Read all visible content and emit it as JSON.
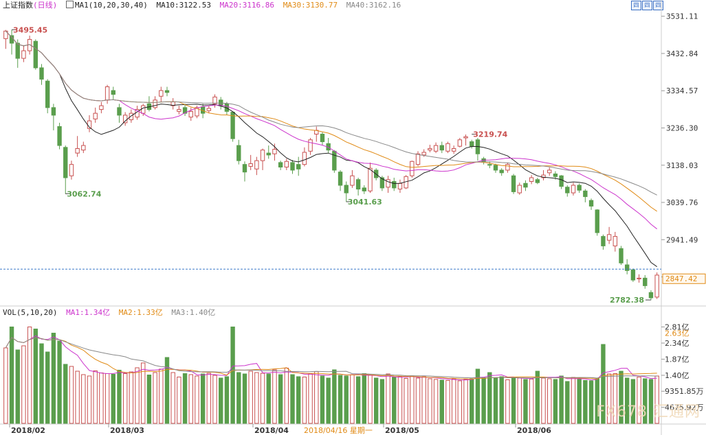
{
  "header": {
    "index_name": "上证指数",
    "period": "(日线)",
    "ma_label": "MA1(10,20,30,40)",
    "ma10": "MA10:3122.53",
    "ma20": "MA20:3116.86",
    "ma30": "MA30:3130.77",
    "ma40": "MA40:3162.16"
  },
  "vol_header": {
    "label": "VOL(5,10,20)",
    "ma1": "MA1:1.34亿",
    "ma2": "MA2:1.33亿",
    "ma3": "MA3:1.40亿"
  },
  "buttons": [
    "四",
    "四",
    "四"
  ],
  "colors": {
    "up": "#c8504f",
    "down": "#5a9e4d",
    "ma10": "#222222",
    "ma20": "#cc33cc",
    "ma30": "#e08a14",
    "ma40": "#888888",
    "grid": "#cccccc",
    "dash": "#3a78c9",
    "price_box": "#e08a14"
  },
  "watermark": "FX678 汇通网",
  "chart_data": {
    "type": "candlestick",
    "price_axis": {
      "ticks": [
        "3531.11",
        "3432.84",
        "3334.57",
        "3236.30",
        "3138.03",
        "3039.76",
        "2941.49",
        "2843.22"
      ],
      "ylim": [
        2770,
        3545
      ]
    },
    "current_price": "2847.42",
    "volume_axis": {
      "ticks": [
        "2.81亿",
        "2.34亿",
        "1.87亿",
        "1.40亿",
        "9351.85万",
        "4675.92万"
      ],
      "highlight": "2.63亿",
      "ylim": [
        0,
        3.1
      ],
      "unit": "亿"
    },
    "x_labels": [
      "2018/02",
      "2018/03",
      "2018/04",
      "2018/05",
      "2018/06"
    ],
    "cursor_label": "2018/04/16 星期一",
    "annotations": [
      {
        "text": "3495.45",
        "value": 3495.45,
        "kind": "high"
      },
      {
        "text": "3062.74",
        "value": 3062.74,
        "kind": "low"
      },
      {
        "text": "3041.63",
        "value": 3041.63,
        "kind": "low"
      },
      {
        "text": "3219.74",
        "value": 3219.74,
        "kind": "high"
      },
      {
        "text": "2782.38",
        "value": 2782.38,
        "kind": "low"
      }
    ],
    "candles": [
      [
        3472,
        3492,
        3445,
        3495
      ],
      [
        3480,
        3460,
        3430,
        3495
      ],
      [
        3460,
        3420,
        3395,
        3470
      ],
      [
        3420,
        3440,
        3410,
        3455
      ],
      [
        3440,
        3470,
        3430,
        3480
      ],
      [
        3465,
        3395,
        3390,
        3470
      ],
      [
        3395,
        3365,
        3350,
        3405
      ],
      [
        3360,
        3290,
        3275,
        3365
      ],
      [
        3290,
        3270,
        3230,
        3300
      ],
      [
        3240,
        3190,
        3180,
        3250
      ],
      [
        3185,
        3105,
        3062,
        3190
      ],
      [
        3110,
        3140,
        3100,
        3150
      ],
      [
        3170,
        3182,
        3160,
        3215
      ],
      [
        3178,
        3190,
        3170,
        3200
      ],
      [
        3235,
        3255,
        3225,
        3270
      ],
      [
        3260,
        3275,
        3250,
        3290
      ],
      [
        3285,
        3295,
        3275,
        3305
      ],
      [
        3310,
        3345,
        3300,
        3350
      ],
      [
        3335,
        3325,
        3310,
        3345
      ],
      [
        3290,
        3270,
        3250,
        3300
      ],
      [
        3250,
        3270,
        3242,
        3278
      ],
      [
        3258,
        3275,
        3250,
        3285
      ],
      [
        3265,
        3285,
        3258,
        3295
      ],
      [
        3275,
        3295,
        3268,
        3300
      ],
      [
        3300,
        3285,
        3280,
        3320
      ],
      [
        3290,
        3310,
        3285,
        3320
      ],
      [
        3320,
        3335,
        3305,
        3345
      ],
      [
        3335,
        3330,
        3320,
        3345
      ],
      [
        3295,
        3305,
        3285,
        3315
      ],
      [
        3280,
        3285,
        3272,
        3295
      ],
      [
        3290,
        3275,
        3268,
        3300
      ],
      [
        3265,
        3280,
        3255,
        3290
      ],
      [
        3268,
        3290,
        3262,
        3295
      ],
      [
        3292,
        3275,
        3262,
        3300
      ],
      [
        3282,
        3288,
        3275,
        3295
      ],
      [
        3300,
        3318,
        3290,
        3325
      ],
      [
        3310,
        3295,
        3285,
        3318
      ],
      [
        3300,
        3280,
        3270,
        3305
      ],
      [
        3278,
        3208,
        3200,
        3280
      ],
      [
        3190,
        3150,
        3140,
        3205
      ],
      [
        3140,
        3120,
        3095,
        3148
      ],
      [
        3135,
        3142,
        3125,
        3165
      ],
      [
        3128,
        3150,
        3112,
        3160
      ],
      [
        3150,
        3178,
        3125,
        3182
      ],
      [
        3170,
        3165,
        3155,
        3190
      ],
      [
        3168,
        3180,
        3150,
        3195
      ],
      [
        3145,
        3133,
        3125,
        3150
      ],
      [
        3133,
        3148,
        3125,
        3155
      ],
      [
        3145,
        3125,
        3115,
        3152
      ],
      [
        3140,
        3128,
        3110,
        3160
      ],
      [
        3140,
        3172,
        3135,
        3185
      ],
      [
        3175,
        3205,
        3165,
        3210
      ],
      [
        3220,
        3230,
        3200,
        3240
      ],
      [
        3220,
        3200,
        3190,
        3225
      ],
      [
        3195,
        3178,
        3170,
        3210
      ],
      [
        3175,
        3125,
        3118,
        3178
      ],
      [
        3120,
        3085,
        3070,
        3125
      ],
      [
        3085,
        3065,
        3041,
        3095
      ],
      [
        3085,
        3110,
        3078,
        3125
      ],
      [
        3100,
        3075,
        3058,
        3105
      ],
      [
        3078,
        3070,
        3062,
        3085
      ],
      [
        3070,
        3130,
        3065,
        3145
      ],
      [
        3125,
        3105,
        3098,
        3130
      ],
      [
        3105,
        3078,
        3070,
        3110
      ],
      [
        3080,
        3100,
        3065,
        3110
      ],
      [
        3095,
        3078,
        3070,
        3105
      ],
      [
        3075,
        3090,
        3065,
        3100
      ],
      [
        3078,
        3108,
        3075,
        3112
      ],
      [
        3110,
        3148,
        3105,
        3150
      ],
      [
        3140,
        3168,
        3135,
        3175
      ],
      [
        3165,
        3172,
        3160,
        3180
      ],
      [
        3178,
        3182,
        3172,
        3192
      ],
      [
        3175,
        3190,
        3170,
        3198
      ],
      [
        3190,
        3178,
        3170,
        3200
      ],
      [
        3175,
        3195,
        3170,
        3200
      ],
      [
        3175,
        3182,
        3168,
        3190
      ],
      [
        3188,
        3205,
        3185,
        3210
      ],
      [
        3210,
        3213,
        3190,
        3219
      ],
      [
        3200,
        3188,
        3182,
        3205
      ],
      [
        3205,
        3168,
        3150,
        3210
      ],
      [
        3155,
        3148,
        3140,
        3160
      ],
      [
        3140,
        3138,
        3130,
        3148
      ],
      [
        3138,
        3125,
        3118,
        3142
      ],
      [
        3125,
        3118,
        3110,
        3130
      ],
      [
        3125,
        3140,
        3118,
        3145
      ],
      [
        3110,
        3068,
        3062,
        3115
      ],
      [
        3065,
        3085,
        3060,
        3092
      ],
      [
        3090,
        3080,
        3070,
        3098
      ],
      [
        3095,
        3105,
        3088,
        3112
      ],
      [
        3100,
        3092,
        3088,
        3105
      ],
      [
        3105,
        3112,
        3098,
        3125
      ],
      [
        3118,
        3125,
        3110,
        3132
      ],
      [
        3115,
        3108,
        3100,
        3122
      ],
      [
        3110,
        3082,
        3075,
        3112
      ],
      [
        3080,
        3065,
        3055,
        3085
      ],
      [
        3065,
        3085,
        3058,
        3092
      ],
      [
        3085,
        3072,
        3065,
        3090
      ],
      [
        3070,
        3055,
        3040,
        3075
      ],
      [
        3045,
        3030,
        3020,
        3050
      ],
      [
        3020,
        2960,
        2952,
        3022
      ],
      [
        2950,
        2925,
        2915,
        2955
      ],
      [
        2940,
        2955,
        2930,
        2975
      ],
      [
        2925,
        2950,
        2910,
        2962
      ],
      [
        2918,
        2880,
        2875,
        2925
      ],
      [
        2875,
        2860,
        2850,
        2890
      ],
      [
        2862,
        2835,
        2830,
        2865
      ],
      [
        2838,
        2840,
        2828,
        2850
      ],
      [
        2840,
        2820,
        2812,
        2848
      ],
      [
        2802,
        2788,
        2782,
        2808
      ],
      [
        2790,
        2848,
        2785,
        2855
      ]
    ],
    "volumes": [
      2.2,
      2.81,
      2.14,
      2.26,
      2.81,
      2.75,
      2.32,
      2.08,
      2.63,
      2.4,
      1.72,
      1.66,
      1.52,
      1.42,
      1.38,
      1.53,
      1.47,
      1.45,
      1.43,
      1.55,
      1.45,
      1.5,
      1.62,
      1.76,
      1.41,
      1.48,
      1.58,
      1.92,
      1.48,
      1.35,
      1.45,
      1.42,
      1.38,
      1.44,
      1.46,
      1.4,
      1.32,
      1.36,
      2.81,
      1.48,
      1.44,
      1.52,
      1.48,
      1.46,
      1.44,
      1.56,
      1.42,
      1.61,
      1.42,
      1.36,
      1.35,
      1.44,
      1.51,
      1.38,
      1.32,
      1.56,
      1.4,
      1.38,
      1.42,
      1.36,
      1.45,
      1.4,
      1.32,
      1.28,
      1.44,
      1.34,
      1.36,
      1.31,
      1.38,
      1.32,
      1.36,
      1.3,
      1.28,
      1.26,
      1.25,
      1.3,
      1.24,
      1.28,
      1.3,
      1.58,
      1.32,
      1.48,
      1.32,
      1.36,
      1.27,
      1.33,
      1.32,
      1.28,
      1.29,
      1.52,
      1.32,
      1.3,
      1.28,
      1.38,
      1.22,
      1.34,
      1.28,
      1.25,
      1.24,
      1.3,
      2.3,
      1.44,
      1.45,
      1.52,
      1.32,
      1.28,
      1.35,
      1.3,
      1.28,
      1.38
    ]
  }
}
